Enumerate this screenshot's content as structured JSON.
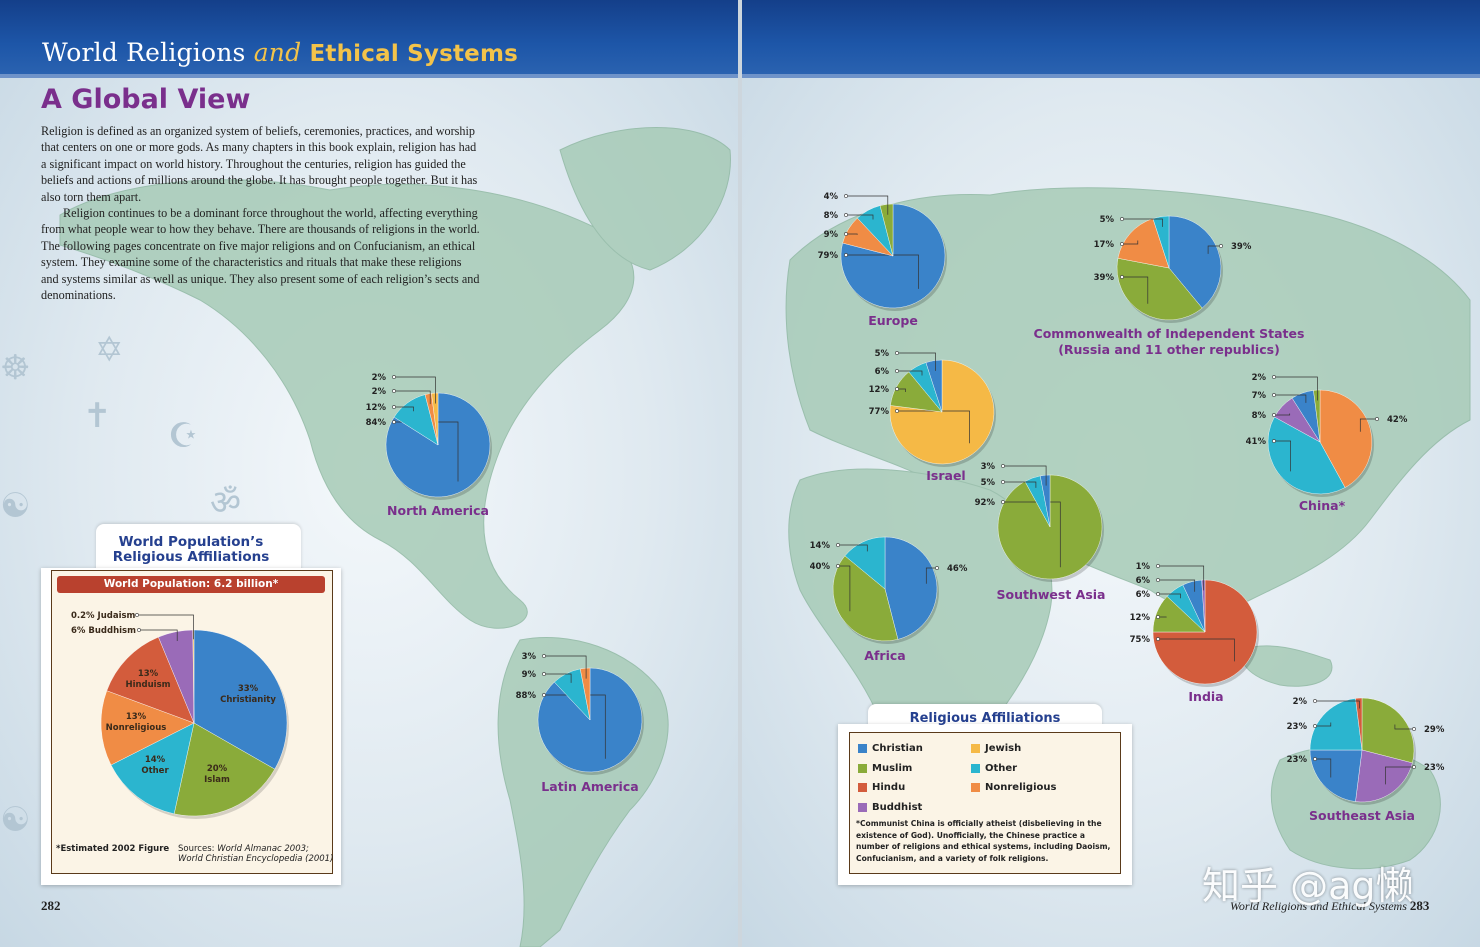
{
  "header": {
    "title_part1": "World Religions ",
    "title_and": "and",
    "title_part2": " Ethical Systems"
  },
  "heading": "A Global View",
  "intro": {
    "p1": "Religion is defined as an organized system of beliefs, ceremonies, practices, and worship that centers on one or more gods. As many chapters in this book explain, religion has had a significant impact on world history. Throughout the centuries, religion has guided the beliefs and actions of millions around the globe. It has brought people together. But it has also torn them apart.",
    "p2": "Religion continues to be a dominant force throughout the world, affecting everything from what people wear to how they behave. There are thousands of religions in the world. The following pages concentrate on five major religions and on Confucianism, an ethical system. They examine some of the characteristics and rituals that make these religions and systems similar as well as unique. They also present some of each religion’s sects and denominations."
  },
  "page_left": "282",
  "page_right_title": "World Religions and Ethical Systems",
  "page_right": "283",
  "watermark": "知乎 @ag懒",
  "colors": {
    "Christian": "#3a83c9",
    "Muslim": "#8aab3a",
    "Hindu": "#d35c3c",
    "Buddhist": "#9a6bb8",
    "Jewish": "#f5b946",
    "Other": "#2bb5cf",
    "Nonreligious": "#f08c45"
  },
  "world_population": {
    "title_line1": "World Population’s",
    "title_line2": "Religious Affiliations",
    "subtitle": "World Population: 6.2 billion*",
    "note": "*Estimated 2002 Figure",
    "sources_label": "Sources: ",
    "source1": "World Almanac 2003;",
    "source2": "World Christian Encyclopedia (2001)"
  },
  "legend": {
    "title": "Religious Affiliations",
    "items": [
      {
        "label": "Christian",
        "key": "Christian"
      },
      {
        "label": "Jewish",
        "key": "Jewish"
      },
      {
        "label": "Muslim",
        "key": "Muslim"
      },
      {
        "label": "Other",
        "key": "Other"
      },
      {
        "label": "Hindu",
        "key": "Hindu"
      },
      {
        "label": "Nonreligious",
        "key": "Nonreligious"
      },
      {
        "label": "Buddhist",
        "key": "Buddhist"
      }
    ],
    "footnote": "*Communist China is officially atheist (disbelieving in the existence of God). Unofficially, the Chinese practice a number of religions and ethical systems, including Daoism, Confucianism, and a variety of folk religions."
  },
  "chart_data": [
    {
      "type": "pie",
      "title": "World Population’s Religious Affiliations",
      "subtitle": "World Population: 6.2 billion*",
      "slices": [
        {
          "category": "Christian",
          "label": "Christianity",
          "value": 33,
          "display": "33%"
        },
        {
          "category": "Muslim",
          "label": "Islam",
          "value": 20,
          "display": "20%"
        },
        {
          "category": "Other",
          "label": "Other",
          "value": 14,
          "display": "14%"
        },
        {
          "category": "Nonreligious",
          "label": "Nonreligious",
          "value": 13,
          "display": "13%"
        },
        {
          "category": "Hindu",
          "label": "Hinduism",
          "value": 13,
          "display": "13%"
        },
        {
          "category": "Buddhist",
          "label": "Buddhism",
          "value": 6,
          "display": "6%"
        },
        {
          "category": "Jewish",
          "label": "Judaism",
          "value": 0.2,
          "display": "0.2%"
        }
      ]
    },
    {
      "type": "pie",
      "title": "North America",
      "slices": [
        {
          "category": "Christian",
          "value": 84
        },
        {
          "category": "Other",
          "value": 12
        },
        {
          "category": "Nonreligious",
          "value": 2
        },
        {
          "category": "Jewish",
          "value": 2
        }
      ]
    },
    {
      "type": "pie",
      "title": "Latin America",
      "slices": [
        {
          "category": "Christian",
          "value": 88
        },
        {
          "category": "Other",
          "value": 9
        },
        {
          "category": "Nonreligious",
          "value": 3
        }
      ]
    },
    {
      "type": "pie",
      "title": "Europe",
      "slices": [
        {
          "category": "Christian",
          "value": 79
        },
        {
          "category": "Nonreligious",
          "value": 9
        },
        {
          "category": "Other",
          "value": 8
        },
        {
          "category": "Muslim",
          "value": 4
        }
      ]
    },
    {
      "type": "pie",
      "title": "Commonwealth of Independent States",
      "subtitle": "(Russia and 11 other republics)",
      "slices": [
        {
          "category": "Christian",
          "value": 39
        },
        {
          "category": "Muslim",
          "value": 39
        },
        {
          "category": "Nonreligious",
          "value": 17
        },
        {
          "category": "Other",
          "value": 5
        }
      ]
    },
    {
      "type": "pie",
      "title": "Israel",
      "slices": [
        {
          "category": "Jewish",
          "value": 77
        },
        {
          "category": "Muslim",
          "value": 12
        },
        {
          "category": "Other",
          "value": 6
        },
        {
          "category": "Christian",
          "value": 5
        }
      ]
    },
    {
      "type": "pie",
      "title": "China*",
      "slices": [
        {
          "category": "Nonreligious",
          "value": 42
        },
        {
          "category": "Other",
          "value": 41
        },
        {
          "category": "Buddhist",
          "value": 8
        },
        {
          "category": "Christian",
          "value": 7
        },
        {
          "category": "Muslim",
          "value": 2
        }
      ]
    },
    {
      "type": "pie",
      "title": "Southwest Asia",
      "slices": [
        {
          "category": "Muslim",
          "value": 92
        },
        {
          "category": "Other",
          "value": 5
        },
        {
          "category": "Christian",
          "value": 3
        }
      ]
    },
    {
      "type": "pie",
      "title": "Africa",
      "slices": [
        {
          "category": "Christian",
          "value": 46
        },
        {
          "category": "Muslim",
          "value": 40
        },
        {
          "category": "Other",
          "value": 14
        }
      ]
    },
    {
      "type": "pie",
      "title": "India",
      "slices": [
        {
          "category": "Hindu",
          "value": 75
        },
        {
          "category": "Muslim",
          "value": 12
        },
        {
          "category": "Other",
          "value": 6
        },
        {
          "category": "Christian",
          "value": 6
        },
        {
          "category": "Buddhist",
          "value": 1
        }
      ]
    },
    {
      "type": "pie",
      "title": "Southeast Asia",
      "slices": [
        {
          "category": "Muslim",
          "value": 29
        },
        {
          "category": "Buddhist",
          "value": 23
        },
        {
          "category": "Christian",
          "value": 23
        },
        {
          "category": "Other",
          "value": 23
        },
        {
          "category": "Hindu",
          "value": 2
        }
      ]
    }
  ]
}
